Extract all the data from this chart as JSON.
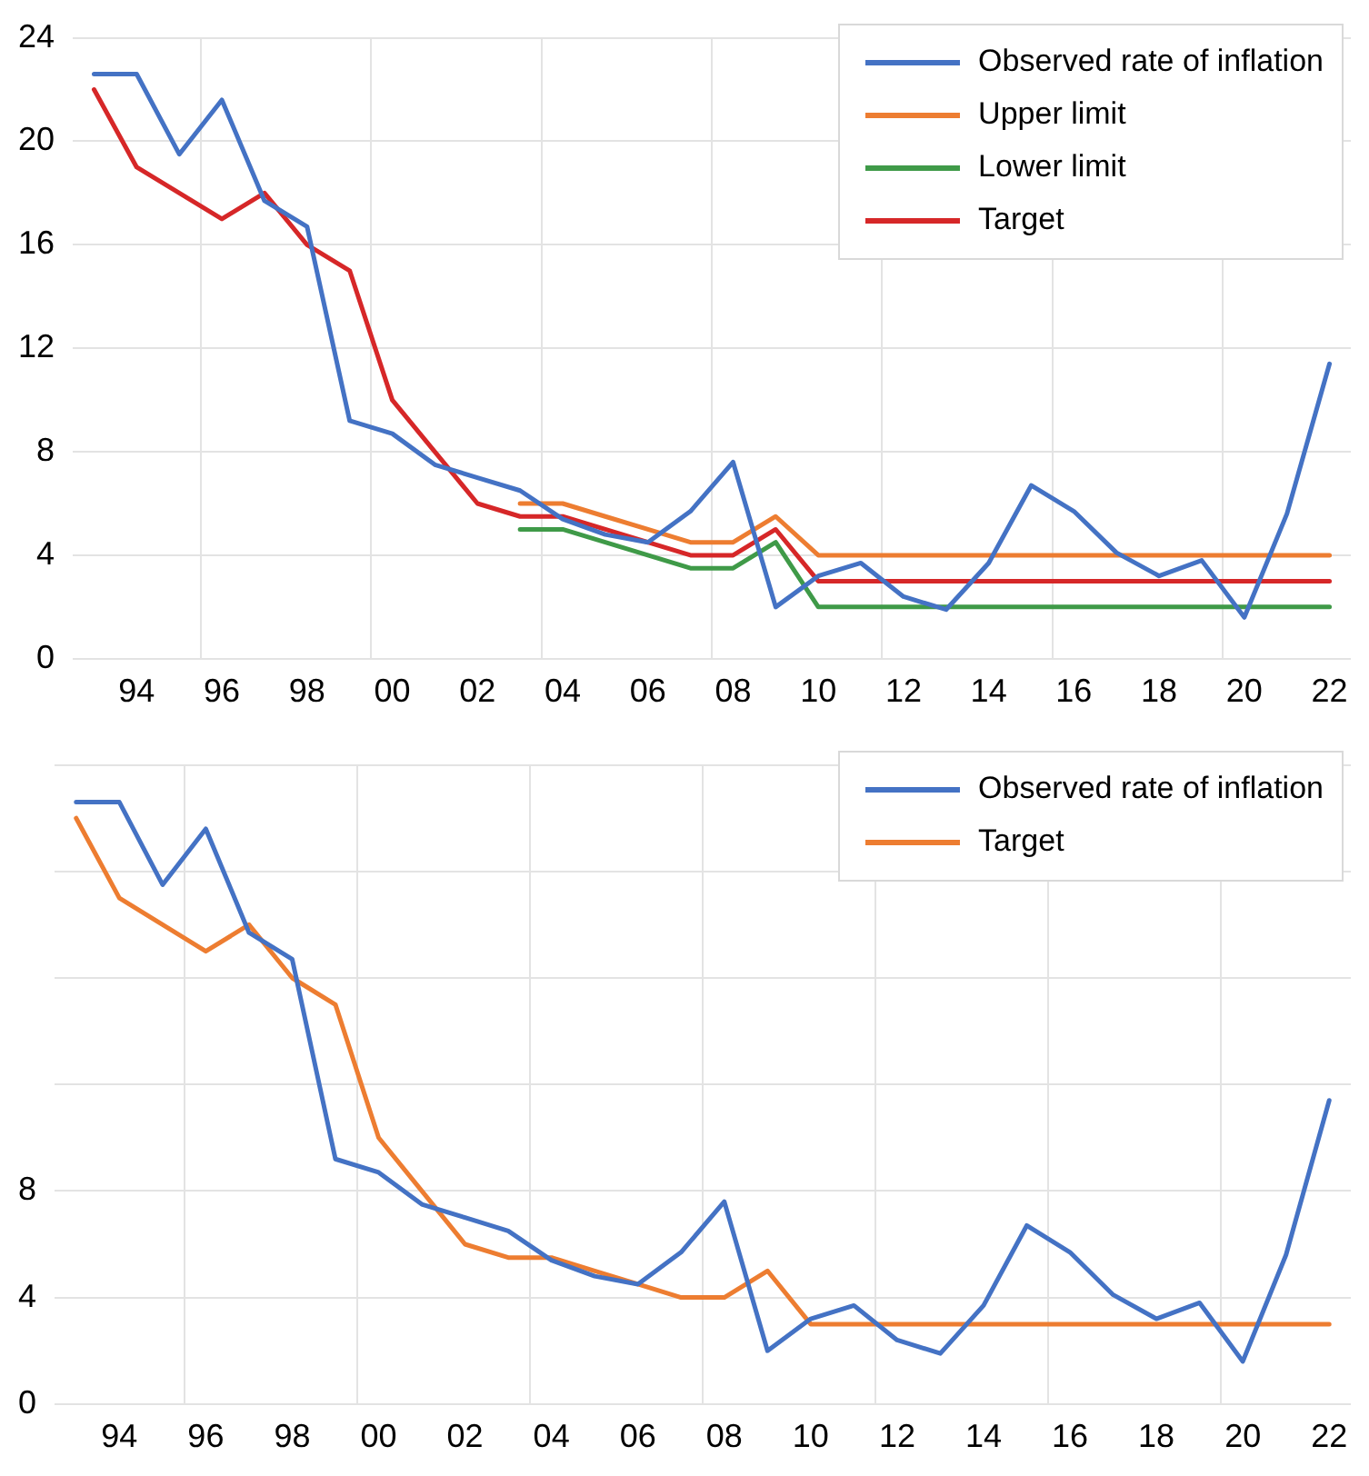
{
  "chart_data": [
    {
      "type": "line",
      "categories": [
        null,
        "94",
        null,
        "96",
        null,
        "98",
        null,
        "00",
        null,
        "02",
        null,
        "04",
        null,
        "06",
        null,
        "08",
        null,
        "10",
        null,
        "12",
        null,
        "14",
        null,
        "16",
        null,
        "18",
        null,
        "20",
        null,
        "22"
      ],
      "series": [
        {
          "name": "Observed rate of inflation",
          "color": "#4472c4",
          "values": [
            22.6,
            22.6,
            19.5,
            21.6,
            17.7,
            16.7,
            9.2,
            8.7,
            7.5,
            7.0,
            6.5,
            5.4,
            4.8,
            4.5,
            5.7,
            7.6,
            2.0,
            3.2,
            3.7,
            2.4,
            1.9,
            3.7,
            6.7,
            5.7,
            4.1,
            3.2,
            3.8,
            1.6,
            5.6,
            11.4
          ]
        },
        {
          "name": "Upper limit",
          "color": "#ed7d31",
          "values": [
            null,
            null,
            null,
            null,
            null,
            null,
            null,
            null,
            null,
            null,
            6.0,
            6.0,
            5.5,
            5.0,
            4.5,
            4.5,
            5.5,
            4.0,
            4.0,
            4.0,
            4.0,
            4.0,
            4.0,
            4.0,
            4.0,
            4.0,
            4.0,
            4.0,
            4.0,
            4.0
          ]
        },
        {
          "name": "Lower limit",
          "color": "#3f9a48",
          "values": [
            null,
            null,
            null,
            null,
            null,
            null,
            null,
            null,
            null,
            null,
            5.0,
            5.0,
            4.5,
            4.0,
            3.5,
            3.5,
            4.5,
            2.0,
            2.0,
            2.0,
            2.0,
            2.0,
            2.0,
            2.0,
            2.0,
            2.0,
            2.0,
            2.0,
            2.0,
            2.0
          ]
        },
        {
          "name": "Target",
          "color": "#d62728",
          "values": [
            22.0,
            19.0,
            18.0,
            17.0,
            18.0,
            16.0,
            15.0,
            10.0,
            8.0,
            6.0,
            5.5,
            5.5,
            5.0,
            4.5,
            4.0,
            4.0,
            5.0,
            3.0,
            3.0,
            3.0,
            3.0,
            3.0,
            3.0,
            3.0,
            3.0,
            3.0,
            3.0,
            3.0,
            3.0,
            3.0
          ]
        }
      ],
      "ylim": [
        0,
        24
      ],
      "yticks": [
        0,
        4,
        8,
        12,
        16,
        20,
        24
      ],
      "grid": true,
      "legend": "top right"
    },
    {
      "type": "line",
      "categories": [
        null,
        "94",
        null,
        "96",
        null,
        "98",
        null,
        "00",
        null,
        "02",
        null,
        "04",
        null,
        "06",
        null,
        "08",
        null,
        "10",
        null,
        "12",
        null,
        "14",
        null,
        "16",
        null,
        "18",
        null,
        "20",
        null,
        "22"
      ],
      "series": [
        {
          "name": "Observed rate of inflation",
          "color": "#4472c4",
          "values": [
            22.6,
            22.6,
            19.5,
            21.6,
            17.7,
            16.7,
            9.2,
            8.7,
            7.5,
            7.0,
            6.5,
            5.4,
            4.8,
            4.5,
            5.7,
            7.6,
            2.0,
            3.2,
            3.7,
            2.4,
            1.9,
            3.7,
            6.7,
            5.7,
            4.1,
            3.2,
            3.8,
            1.6,
            5.6,
            11.4
          ]
        },
        {
          "name": "Target",
          "color": "#ed7d31",
          "values": [
            22.0,
            19.0,
            18.0,
            17.0,
            18.0,
            16.0,
            15.0,
            10.0,
            8.0,
            6.0,
            5.5,
            5.5,
            5.0,
            4.5,
            4.0,
            4.0,
            5.0,
            3.0,
            3.0,
            3.0,
            3.0,
            3.0,
            3.0,
            3.0,
            3.0,
            3.0,
            3.0,
            3.0,
            3.0,
            3.0
          ]
        }
      ],
      "ylim": [
        0,
        24
      ],
      "yticks": [
        0,
        4,
        8,
        {
          "value": 12,
          "label": null
        },
        {
          "value": 16,
          "label": null
        },
        {
          "value": 20,
          "label": null
        },
        {
          "value": 24,
          "label": null
        }
      ],
      "grid": true,
      "legend": "top right"
    }
  ]
}
